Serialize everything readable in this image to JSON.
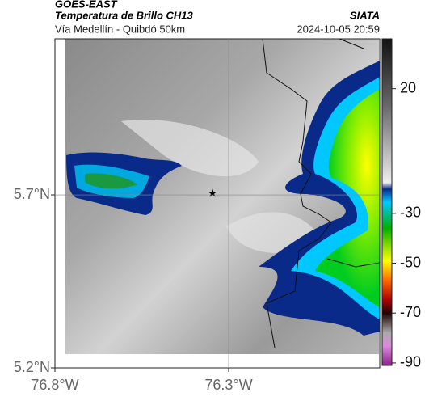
{
  "header": {
    "title": "GOES-EAST",
    "subtitle": "Temperatura de Brillo CH13",
    "source": "SIATA",
    "route": "Vía Medellín - Quibdó 50km",
    "timestamp": "2024-10-05 20:59"
  },
  "map": {
    "xlim": [
      -76.8,
      -75.865
    ],
    "ylim": [
      5.2,
      6.151
    ],
    "xticks": [
      {
        "value": -76.8,
        "label": "76.8°W"
      },
      {
        "value": -76.3,
        "label": "76.3°W"
      }
    ],
    "yticks": [
      {
        "value": 5.7,
        "label": "5.7°N"
      },
      {
        "value": 5.2,
        "label": "5.2°N"
      }
    ]
  },
  "colorbar": {
    "range": [
      40,
      -91
    ],
    "ticks": [
      20,
      -30,
      -50,
      -70,
      -90
    ]
  }
}
